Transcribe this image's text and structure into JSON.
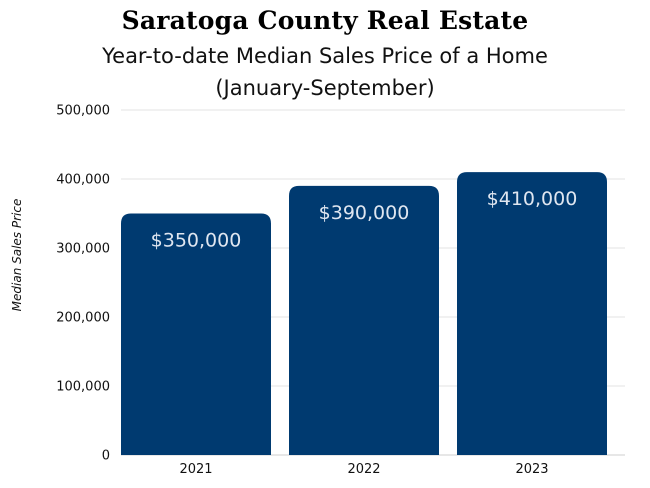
{
  "chart_data": {
    "type": "bar",
    "title": "Saratoga County Real Estate",
    "subtitle_line1": "Year-to-date Median Sales Price of a Home",
    "subtitle_line2": "(January-September)",
    "xlabel": "",
    "ylabel": "Median Sales Price",
    "categories": [
      "2021",
      "2022",
      "2023"
    ],
    "values": [
      350000,
      390000,
      410000
    ],
    "data_labels": [
      "$350,000",
      "$390,000",
      "$410,000"
    ],
    "ylim": [
      0,
      500000
    ],
    "yticks": [
      0,
      100000,
      200000,
      300000,
      400000,
      500000
    ],
    "ytick_labels": [
      "0",
      "100,000",
      "200,000",
      "300,000",
      "400,000",
      "500,000"
    ],
    "grid": true,
    "bar_color": "#003a70",
    "label_color": "#dfe6f0",
    "grid_color": "#e3e3e3"
  }
}
